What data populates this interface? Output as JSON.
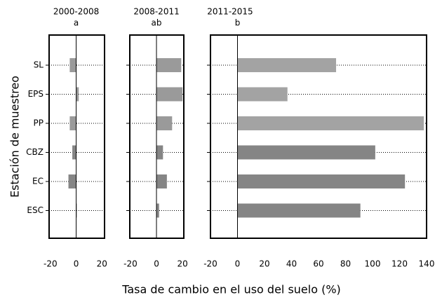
{
  "ylabel": "Estación de muestreo",
  "xlabel": "Tasa de cambio en el uso del suelo (%)",
  "chart_data": [
    {
      "type": "barh",
      "title": "2000-2008",
      "subtitle": "a",
      "categories": [
        "SL",
        "EPS",
        "PP",
        "CBZ",
        "EC",
        "ESC"
      ],
      "values": [
        -5,
        2,
        -5,
        -3,
        -6,
        0.5
      ],
      "colors": [
        "#9a9a9a",
        "#9a9a9a",
        "#9a9a9a",
        "#858585",
        "#858585",
        "#858585"
      ],
      "xlim": [
        -21,
        22
      ],
      "xticks": [
        -20,
        0,
        20
      ],
      "grid": true
    },
    {
      "type": "barh",
      "title": "2008-2011",
      "subtitle": "ab",
      "values": [
        19,
        20,
        12,
        5,
        8,
        2
      ],
      "colors": [
        "#9a9a9a",
        "#9a9a9a",
        "#9a9a9a",
        "#858585",
        "#858585",
        "#858585"
      ],
      "xlim": [
        -20.5,
        21
      ],
      "xticks": [
        -20,
        0,
        20
      ],
      "grid": true
    },
    {
      "type": "barh",
      "title": "2011-2015",
      "subtitle": "b",
      "values": [
        73,
        37,
        138,
        102,
        124,
        91
      ],
      "colors": [
        "#a3a3a3",
        "#a3a3a3",
        "#a3a3a3",
        "#858585",
        "#858585",
        "#858585"
      ],
      "xlim": [
        -20,
        140
      ],
      "xticks": [
        -20,
        0,
        20,
        40,
        60,
        80,
        100,
        120,
        140
      ],
      "grid": true
    }
  ]
}
